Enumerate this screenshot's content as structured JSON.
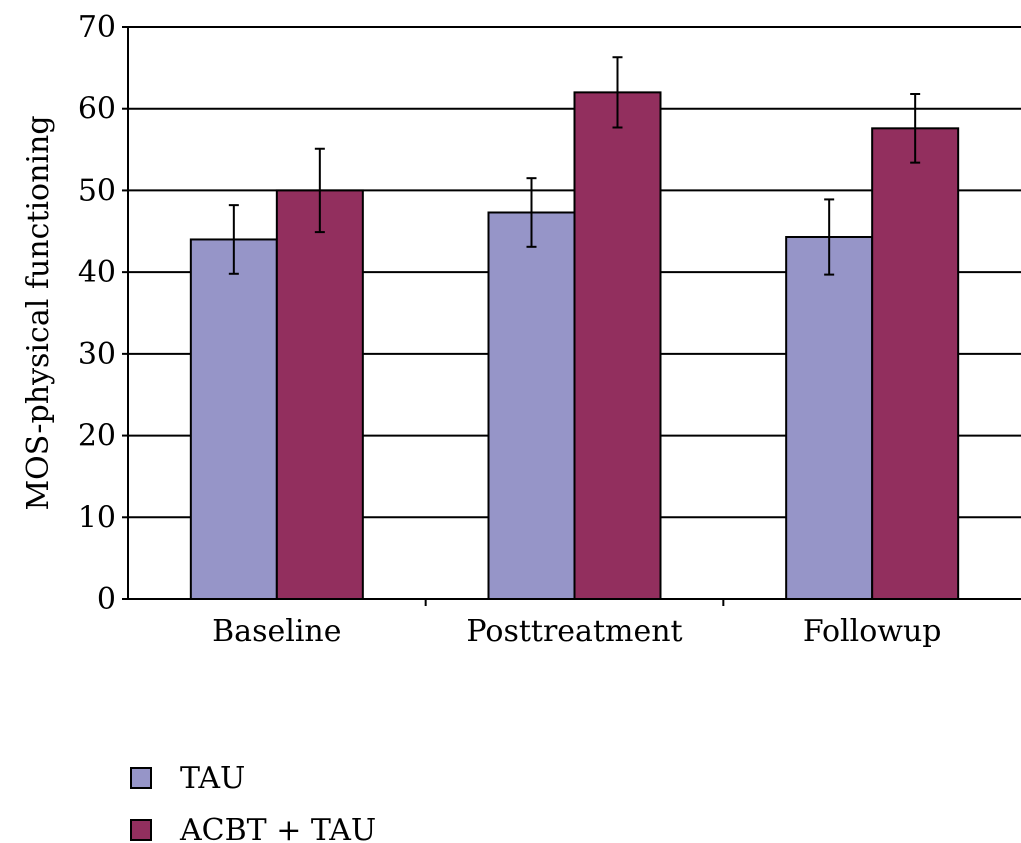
{
  "chart_data": {
    "type": "bar",
    "title": "",
    "xlabel": "",
    "ylabel": "MOS-physical functioning",
    "ylim": [
      0,
      70
    ],
    "yticks": [
      0,
      10,
      20,
      30,
      40,
      50,
      60,
      70
    ],
    "grid": true,
    "legend_position": "bottom-left",
    "categories": [
      "Baseline",
      "Posttreatment",
      "Followup"
    ],
    "series": [
      {
        "name": "TAU",
        "color": "#9695c8",
        "values": [
          44,
          47.3,
          44.3
        ],
        "error": [
          4.2,
          4.2,
          4.6
        ]
      },
      {
        "name": "ACBT + TAU",
        "color": "#922f5e",
        "values": [
          50,
          62,
          57.6
        ],
        "error": [
          5.1,
          4.3,
          4.2
        ]
      }
    ]
  }
}
